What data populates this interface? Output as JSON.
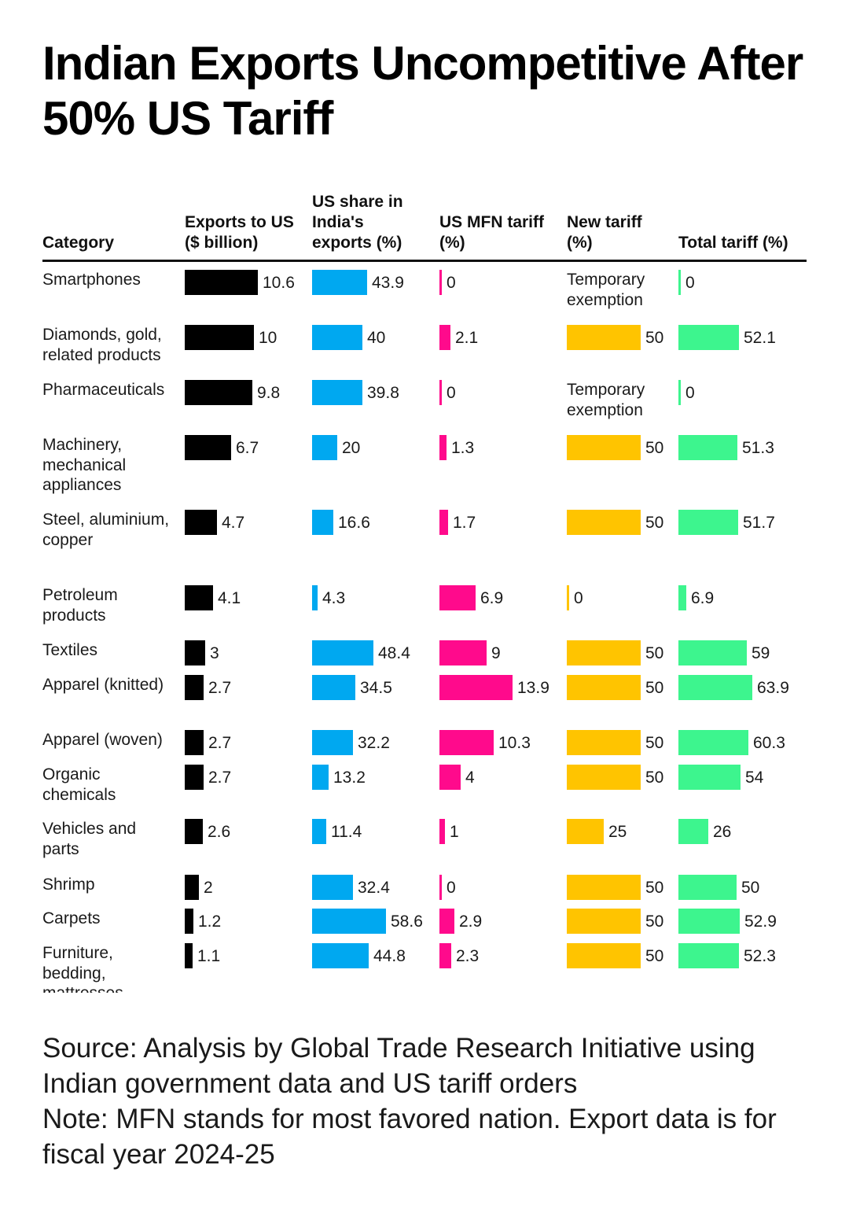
{
  "title": "Indian Exports Uncompetitive After 50% US Tariff",
  "headers": {
    "category": "Category",
    "exports": "Exports to US\n($ billion)",
    "share": "US share in\nIndia's\nexports (%)",
    "mfn": "US MFN tariff\n(%)",
    "new_tariff": "New tariff\n(%)",
    "total": "Total tariff (%)"
  },
  "colors": {
    "exports": "#000000",
    "share": "#00a8f0",
    "mfn": "#ff0a8c",
    "new_tariff": "#ffc400",
    "total": "#3df58e"
  },
  "exemption_text": "Temporary exemption",
  "chart_data": {
    "type": "table",
    "title": "Indian Exports Uncompetitive After 50% US Tariff",
    "columns": [
      "Category",
      "Exports to US ($ billion)",
      "US share in India's exports (%)",
      "US MFN tariff (%)",
      "New tariff (%)",
      "Total tariff (%)"
    ],
    "rows": [
      {
        "category": "Smartphones",
        "exports": 10.6,
        "share": 43.9,
        "mfn": 0,
        "new_tariff": "Temporary exemption",
        "total": 0
      },
      {
        "category": "Diamonds, gold, related products",
        "exports": 10,
        "share": 40,
        "mfn": 2.1,
        "new_tariff": 50,
        "total": 52.1
      },
      {
        "category": "Pharmaceuticals",
        "exports": 9.8,
        "share": 39.8,
        "mfn": 0,
        "new_tariff": "Temporary exemption",
        "total": 0
      },
      {
        "category": "Machinery, mechanical appliances",
        "exports": 6.7,
        "share": 20,
        "mfn": 1.3,
        "new_tariff": 50,
        "total": 51.3
      },
      {
        "category": "Steel, aluminium, copper",
        "exports": 4.7,
        "share": 16.6,
        "mfn": 1.7,
        "new_tariff": 50,
        "total": 51.7
      },
      {
        "category": "Petroleum products",
        "exports": 4.1,
        "share": 4.3,
        "mfn": 6.9,
        "new_tariff": 0,
        "total": 6.9
      },
      {
        "category": "Textiles",
        "exports": 3,
        "share": 48.4,
        "mfn": 9,
        "new_tariff": 50,
        "total": 59
      },
      {
        "category": "Apparel (knitted)",
        "exports": 2.7,
        "share": 34.5,
        "mfn": 13.9,
        "new_tariff": 50,
        "total": 63.9
      },
      {
        "category": "Apparel (woven)",
        "exports": 2.7,
        "share": 32.2,
        "mfn": 10.3,
        "new_tariff": 50,
        "total": 60.3
      },
      {
        "category": "Organic chemicals",
        "exports": 2.7,
        "share": 13.2,
        "mfn": 4,
        "new_tariff": 50,
        "total": 54
      },
      {
        "category": "Vehicles and parts",
        "exports": 2.6,
        "share": 11.4,
        "mfn": 1,
        "new_tariff": 25,
        "total": 26
      },
      {
        "category": "Shrimp",
        "exports": 2,
        "share": 32.4,
        "mfn": 0,
        "new_tariff": 50,
        "total": 50
      },
      {
        "category": "Carpets",
        "exports": 1.2,
        "share": 58.6,
        "mfn": 2.9,
        "new_tariff": 50,
        "total": 52.9
      },
      {
        "category": "Furniture, bedding, mattresses",
        "exports": 1.1,
        "share": 44.8,
        "mfn": 2.3,
        "new_tariff": 50,
        "total": 52.3
      }
    ]
  },
  "footer": {
    "source": "Source: Analysis by Global Trade Research Initiative using Indian government data and US tariff orders",
    "note": "Note: MFN stands for most favored nation. Export data is for fiscal year 2024-25"
  }
}
